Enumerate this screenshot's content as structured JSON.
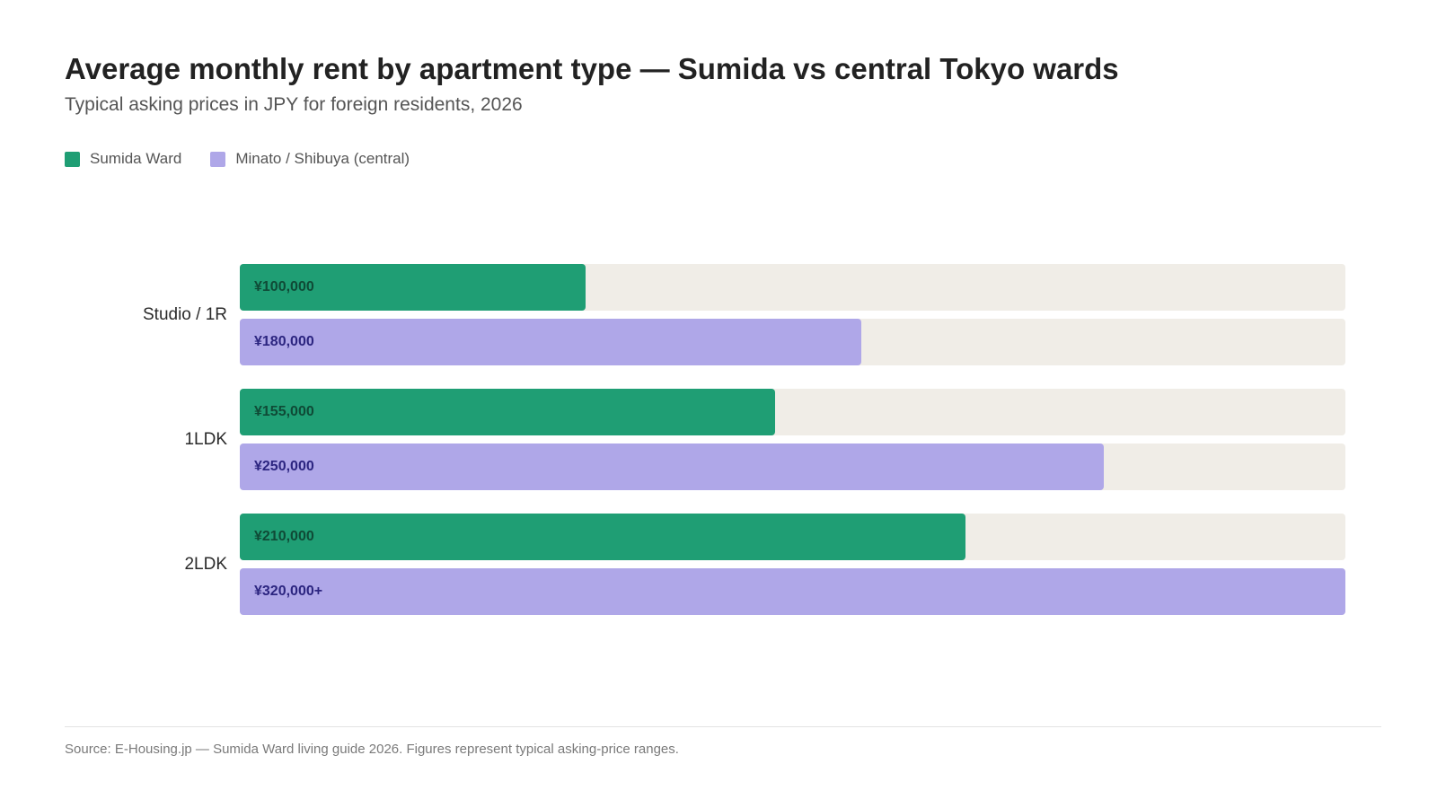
{
  "header": {
    "title": "Average monthly rent by apartment type — Sumida vs central Tokyo wards",
    "subtitle": "Typical asking prices in JPY for foreign residents, 2026"
  },
  "legend": {
    "items": [
      {
        "label": "Sumida Ward",
        "color": "#1f9e74"
      },
      {
        "label": "Minato / Shibuya (central)",
        "color": "#afa7e8"
      }
    ]
  },
  "footer": {
    "source": "Source: E-Housing.jp — Sumida Ward living guide 2026. Figures represent typical asking-price ranges."
  },
  "chart_data": {
    "type": "bar",
    "orientation": "horizontal",
    "title": "Average monthly rent by apartment type — Sumida vs central Tokyo wards",
    "subtitle": "Typical asking prices in JPY for foreign residents, 2026",
    "categories": [
      "Studio / 1R",
      "1LDK",
      "2LDK"
    ],
    "series": [
      {
        "name": "Sumida Ward",
        "color": "#1f9e74",
        "label_color": "#0f4a36",
        "values": [
          100000,
          155000,
          210000
        ],
        "labels": [
          "¥100,000",
          "¥155,000",
          "¥210,000"
        ]
      },
      {
        "name": "Minato / Shibuya (central)",
        "color": "#afa7e8",
        "label_color": "#2c2580",
        "values": [
          180000,
          250000,
          320000
        ],
        "labels": [
          "¥180,000",
          "¥250,000",
          "¥320,000+"
        ]
      }
    ],
    "xlim": [
      0,
      320000
    ],
    "track_color": "#f0ede7",
    "legend_position": "top-left",
    "grid": false
  }
}
